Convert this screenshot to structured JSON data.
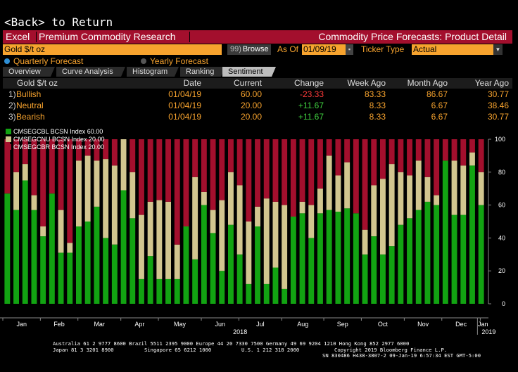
{
  "back": "<Back> to Return",
  "toolbar": {
    "excel": "Excel",
    "research": "Premium Commodity Research",
    "title": "Commodity Price Forecasts: Product Detail"
  },
  "controls": {
    "security": "Gold $/t oz",
    "browse_num": "99)",
    "browse": "Browse",
    "asof_label": "As Of",
    "asof": "01/09/19",
    "ticker_type_label": "Ticker Type",
    "ticker_type": "Actual"
  },
  "forecast": {
    "quarterly": "Quarterly Forecast",
    "yearly": "Yearly Forecast"
  },
  "tabs": [
    "Overview",
    "Curve Analysis",
    "Histogram",
    "Ranking",
    "Sentiment"
  ],
  "table": {
    "headers": [
      "Gold $/t oz",
      "Date",
      "Current",
      "Change",
      "Week Ago",
      "Month Ago",
      "Year Ago"
    ],
    "rows": [
      {
        "idx": "1)",
        "label": "Bullish",
        "date": "01/04/19",
        "current": "60.00",
        "change": "-23.33",
        "week": "83.33",
        "month": "86.67",
        "year": "30.77"
      },
      {
        "idx": "2)",
        "label": "Neutral",
        "date": "01/04/19",
        "current": "20.00",
        "change": "+11.67",
        "week": "8.33",
        "month": "6.67",
        "year": "38.46"
      },
      {
        "idx": "3)",
        "label": "Bearish",
        "date": "01/04/19",
        "current": "20.00",
        "change": "+11.67",
        "week": "8.33",
        "month": "6.67",
        "year": "30.77"
      }
    ]
  },
  "colors": {
    "bullish": "#12a312",
    "neutral": "#d2c68f",
    "bearish": "#a30f2d",
    "orange": "#f7a32e"
  },
  "footer": {
    "line1": "Australia 61 2 9777 8600 Brazil 5511 2395 9000 Europe 44 20 7330 7500 Germany 49 69 9204 1210 Hong Kong 852 2977 6000",
    "line2a": "Japan 81 3 3201 8900",
    "line2b": "Singapore 65 6212 1000",
    "line2c": "U.S. 1 212 318 2000",
    "line2d": "Copyright 2019 Bloomberg Finance L.P.",
    "line3": "SN 830486 H438-3807-2 09-Jan-19  6:57:34 EST  GMT-5:00"
  },
  "chart_data": {
    "type": "bar",
    "stacked": true,
    "ylim": [
      0,
      100
    ],
    "yticks": [
      0,
      20,
      40,
      60,
      80,
      100
    ],
    "months": [
      "Jan",
      "Feb",
      "Mar",
      "Apr",
      "May",
      "Jun",
      "Jul",
      "Aug",
      "Sep",
      "Oct",
      "Nov",
      "Dec",
      "Jan"
    ],
    "years": [
      "2018",
      "2019"
    ],
    "legend": [
      "CMSEGCBL BCSN Index 60.00",
      "CMSEGCNU BCSN Index 20.00",
      "CMSEGCBR BCSN Index 20.00"
    ],
    "series": [
      {
        "name": "CMSEGCBL BCSN Index",
        "values": [
          67,
          57,
          75,
          57,
          41,
          67,
          31,
          31,
          47,
          50,
          59,
          40,
          36,
          69,
          52,
          15,
          29,
          15,
          15,
          15,
          47,
          27,
          60,
          43,
          20,
          48,
          30,
          12,
          47,
          12,
          22,
          9,
          53,
          55,
          40,
          55,
          57,
          56,
          58,
          55,
          30,
          41,
          30,
          35,
          48,
          52,
          57,
          62,
          60,
          87,
          54,
          54,
          84,
          60
        ]
      },
      {
        "name": "CMSEGCNU BCSN Index",
        "values": [
          0,
          23,
          10,
          9,
          6,
          0,
          26,
          6,
          40,
          40,
          28,
          48,
          48,
          31,
          28,
          39,
          33,
          48,
          47,
          21,
          0,
          50,
          8,
          14,
          43,
          32,
          42,
          38,
          12,
          52,
          40,
          51,
          0,
          7,
          20,
          15,
          33,
          22,
          28,
          0,
          15,
          31,
          46,
          50,
          32,
          26,
          30,
          15,
          6,
          0,
          33,
          30,
          8,
          20
        ]
      },
      {
        "name": "CMSEGCBR BCSN Index",
        "values": [
          33,
          20,
          15,
          34,
          53,
          33,
          43,
          63,
          13,
          10,
          13,
          12,
          16,
          0,
          20,
          46,
          38,
          37,
          38,
          64,
          53,
          23,
          32,
          43,
          37,
          20,
          28,
          50,
          41,
          36,
          38,
          40,
          47,
          38,
          40,
          30,
          10,
          22,
          14,
          45,
          55,
          28,
          24,
          15,
          20,
          22,
          13,
          23,
          34,
          13,
          13,
          16,
          8,
          20
        ]
      }
    ]
  }
}
